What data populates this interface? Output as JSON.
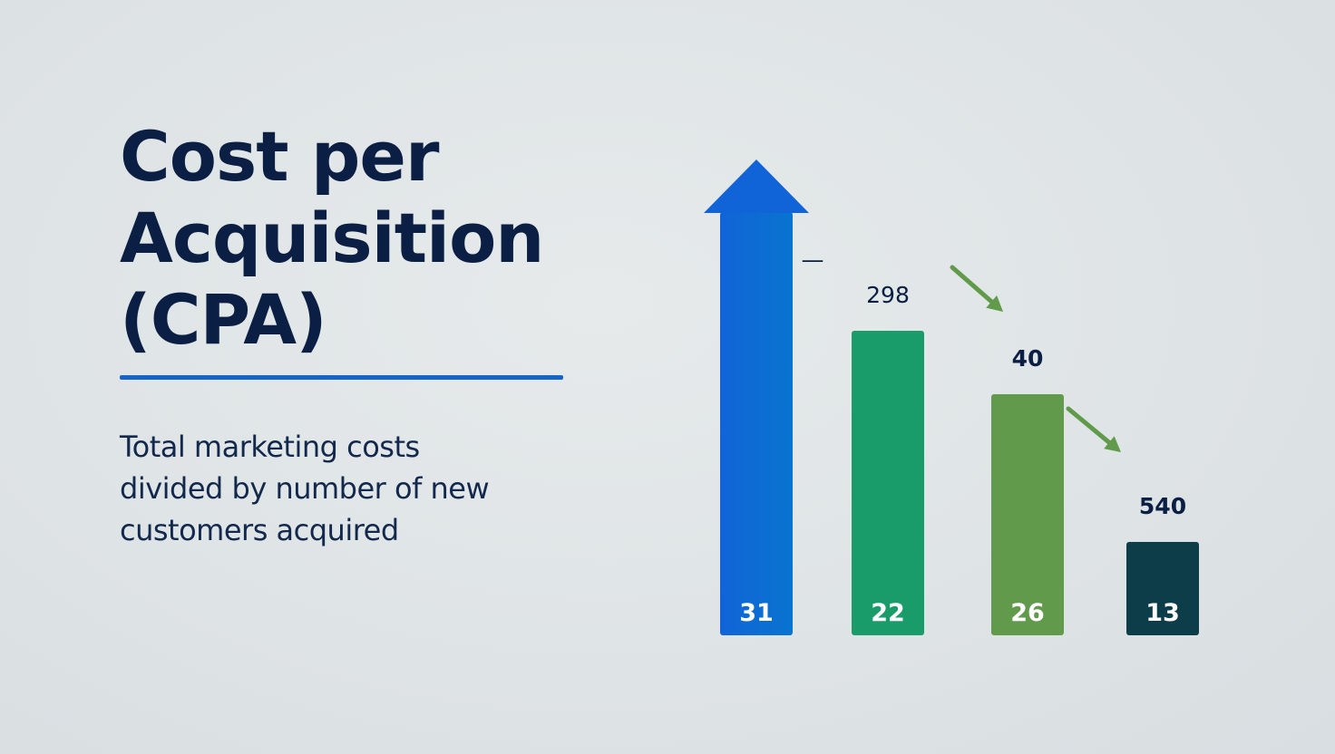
{
  "heading": {
    "lines": [
      "Cost per",
      "Acquisition",
      "(CPA)"
    ]
  },
  "description": {
    "lines": [
      "Total marketing costs",
      "divided by number of new",
      "customers acquired"
    ]
  },
  "colors": {
    "title": "#0b1f44",
    "accent_rule": "#1565c8",
    "background": "#dfe4e6"
  },
  "chart_data": {
    "type": "bar",
    "title": "",
    "xlabel": "",
    "ylabel": "",
    "grid": false,
    "legend": "none",
    "series": [
      {
        "values": [
          31,
          22,
          26,
          13
        ],
        "colors": [
          "#0a6fd4",
          "#1a9b6a",
          "#619a4b",
          "#0e3d4a"
        ],
        "top_labels": [
          "—",
          "298",
          "40",
          "540"
        ],
        "relative_heights": [
          1.0,
          0.72,
          0.57,
          0.22
        ]
      }
    ],
    "annotations": [
      {
        "type": "up-arrow",
        "on_bar": 0
      },
      {
        "type": "down-arrow",
        "between": [
          1,
          2
        ]
      },
      {
        "type": "down-arrow",
        "between": [
          2,
          3
        ]
      }
    ]
  }
}
